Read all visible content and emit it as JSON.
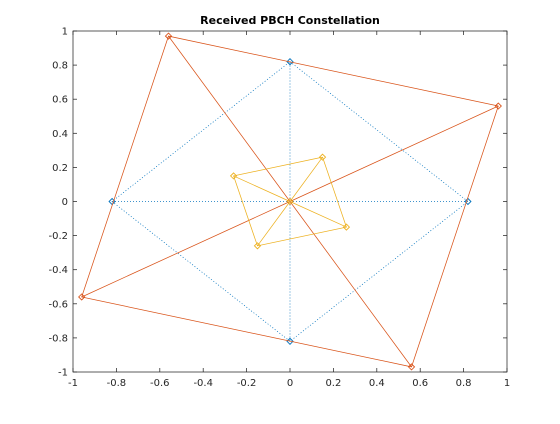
{
  "chart_data": {
    "type": "line",
    "title": "Received PBCH Constellation",
    "xlabel": "",
    "ylabel": "",
    "xlim": [
      -1,
      1
    ],
    "ylim": [
      -1,
      1
    ],
    "x_ticks": [
      -1,
      -0.8,
      -0.6,
      -0.4,
      -0.2,
      0,
      0.2,
      0.4,
      0.6,
      0.8,
      1
    ],
    "y_ticks": [
      -1,
      -0.8,
      -0.6,
      -0.4,
      -0.2,
      0,
      0.2,
      0.4,
      0.6,
      0.8,
      1
    ],
    "x_tick_labels": [
      "-1",
      "-0.8",
      "-0.6",
      "-0.4",
      "-0.2",
      "0",
      "0.2",
      "0.4",
      "0.6",
      "0.8",
      "1"
    ],
    "y_tick_labels": [
      "-1",
      "-0.8",
      "-0.6",
      "-0.4",
      "-0.2",
      "0",
      "0.2",
      "0.4",
      "0.6",
      "0.8",
      "1"
    ],
    "grid": false,
    "box": true,
    "series": [
      {
        "color": "#0072bd",
        "line_style": "dotted",
        "marker": "diamond",
        "points": [
          [
            0,
            0.82
          ],
          [
            0.82,
            0
          ],
          [
            0,
            -0.82
          ],
          [
            -0.82,
            0
          ]
        ]
      },
      {
        "color": "#d95319",
        "line_style": "solid",
        "marker": "diamond",
        "points": [
          [
            0.96,
            0.56
          ],
          [
            0.56,
            -0.97
          ],
          [
            -0.96,
            -0.56
          ],
          [
            -0.56,
            0.97
          ]
        ]
      },
      {
        "color": "#edb120",
        "line_style": "solid",
        "marker": "diamond",
        "points": [
          [
            0.15,
            0.26
          ],
          [
            0.26,
            -0.15
          ],
          [
            -0.15,
            -0.26
          ],
          [
            -0.26,
            0.15
          ]
        ]
      }
    ]
  }
}
